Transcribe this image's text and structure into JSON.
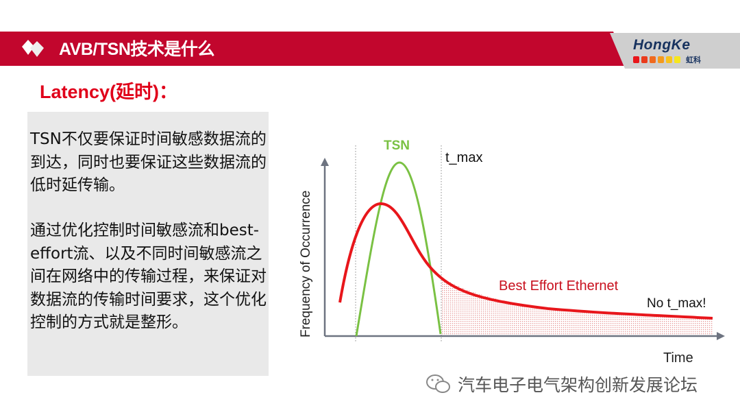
{
  "header": {
    "title": "AVB/TSN技术是什么",
    "logo_text": "HongKe",
    "logo_cn": "虹科",
    "logo_dots": [
      "#e8161b",
      "#ea3b1c",
      "#f06a1e",
      "#f49a1e",
      "#f8c21d",
      "#f6e61e"
    ],
    "banner_color": "#c2062d"
  },
  "subtitle": "Latency(延时)：",
  "body": {
    "paragraph1": "TSN不仅要保证时间敏感数据流的到达，同时也要保证这些数据流的低时延传输。",
    "paragraph2": "通过优化控制时间敏感流和best-effort流、以及不同时间敏感流之间在网络中的传输过程，来保证对数据流的传输时间要求，这个优化控制的方式就是整形。"
  },
  "diagram": {
    "ylabel": "Frequency of Occurrence",
    "xlabel": "Time",
    "tsn_label": "TSN",
    "tmax_label": "t_max",
    "best_effort_label": "Best Effort Ethernet",
    "no_tmax_label": "No t_max!",
    "tsn_color": "#7ac143",
    "best_effort_color": "#e8161b"
  },
  "watermark": "汽车电子电气架构创新发展论坛"
}
